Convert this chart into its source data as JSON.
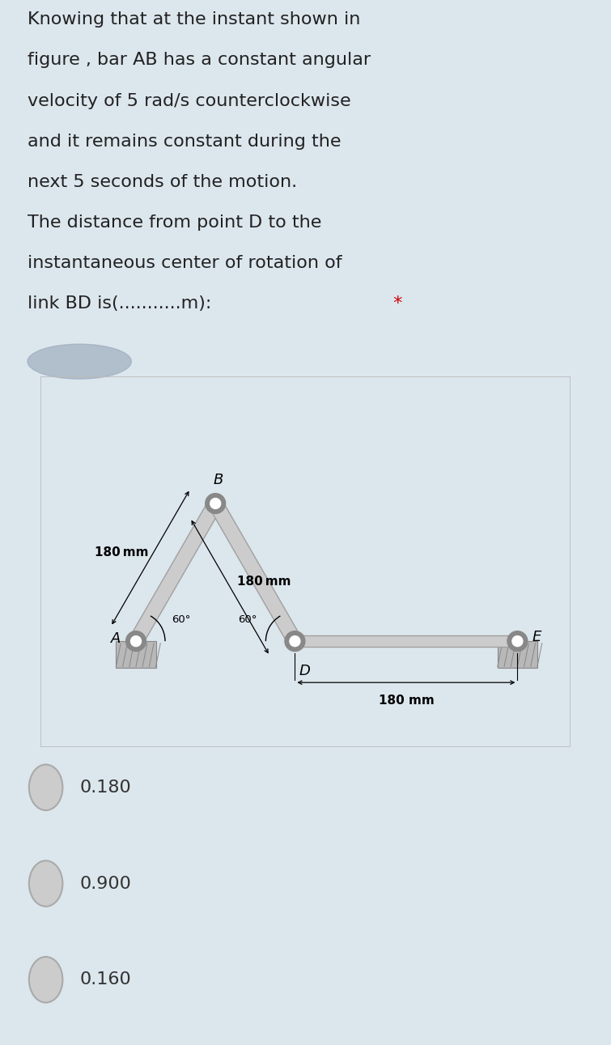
{
  "bg_color_top": "#dce6ed",
  "bg_color_diagram": "#ffffff",
  "bg_color_option": "#efefef",
  "question_lines": [
    "Knowing that at the instant shown in",
    "figure , bar AB has a constant angular",
    "velocity of 5 rad/s counterclockwise",
    "and it remains constant during the",
    "next 5 seconds of the motion.",
    "The distance from point D to the",
    "instantaneous center of rotation of",
    "link BD is(...........m):"
  ],
  "star_color": "#cc0000",
  "options": [
    "0.180",
    "0.900",
    "0.160"
  ],
  "label_A": "A",
  "label_B": "B",
  "label_D": "D",
  "label_E": "E",
  "label_180mm_left": "180 mm",
  "label_180mm_right": "180 mm",
  "label_180mm_bottom": "180 mm",
  "label_60left": "60°",
  "label_60right": "60°",
  "bar_color": "#c8c8c8",
  "bar_edge_color": "#a0a0a0",
  "text_color": "#222222",
  "option_text_color": "#333333",
  "radio_fill": "#cccccc",
  "radio_edge": "#aaaaaa"
}
